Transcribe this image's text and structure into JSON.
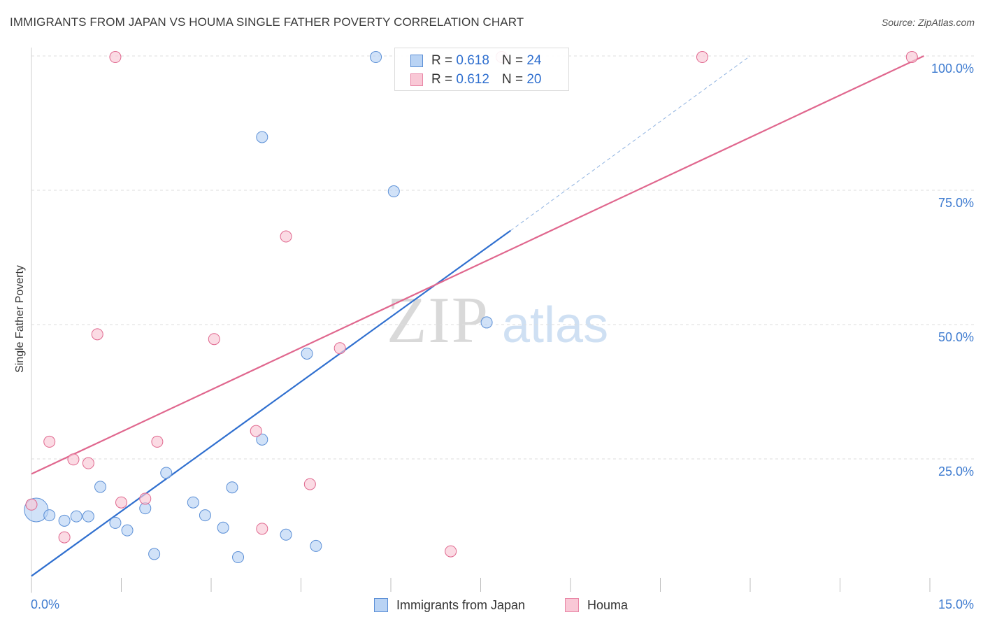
{
  "header": {
    "title": "IMMIGRANTS FROM JAPAN VS HOUMA SINGLE FATHER POVERTY CORRELATION CHART",
    "source": "Source: ZipAtlas.com"
  },
  "watermark": {
    "zip": "ZIP",
    "atlas": "atlas"
  },
  "legend_top": {
    "rows": [
      {
        "r_label": "R =",
        "r_value": "0.618",
        "n_label": "N =",
        "n_value": "24",
        "color": "#b9d3f4"
      },
      {
        "r_label": "R =",
        "r_value": "0.612",
        "n_label": "N =",
        "n_value": "20",
        "color": "#f9c8d6"
      }
    ]
  },
  "legend_bottom": {
    "items": [
      {
        "label": "Immigrants from Japan",
        "color": "#b9d3f4"
      },
      {
        "label": "Houma",
        "color": "#f9c8d6"
      }
    ]
  },
  "chart_data": {
    "type": "scatter",
    "title": "IMMIGRANTS FROM JAPAN VS HOUMA SINGLE FATHER POVERTY CORRELATION CHART",
    "xlabel": "",
    "ylabel": "Single Father Poverty",
    "xlim": [
      0,
      15
    ],
    "ylim": [
      0,
      100
    ],
    "x_tick_labels": [
      "0.0%",
      "15.0%"
    ],
    "y_tick_labels": [
      "25.0%",
      "50.0%",
      "75.0%",
      "100.0%"
    ],
    "y_ticks": [
      25,
      50,
      75,
      100
    ],
    "grid": true,
    "legend_position": "top-center",
    "series": [
      {
        "name": "Immigrants from Japan",
        "color": "#5b8fd6",
        "fill": "#b9d3f4",
        "r": 0.618,
        "n": 24,
        "points": [
          [
            0.08,
            15.5
          ],
          [
            0.3,
            14.5
          ],
          [
            0.55,
            13.5
          ],
          [
            0.75,
            14.3
          ],
          [
            0.95,
            14.3
          ],
          [
            1.15,
            19.8
          ],
          [
            1.4,
            13.1
          ],
          [
            1.6,
            11.7
          ],
          [
            1.9,
            15.8
          ],
          [
            2.05,
            7.3
          ],
          [
            2.25,
            22.4
          ],
          [
            2.7,
            16.9
          ],
          [
            2.9,
            14.5
          ],
          [
            3.2,
            12.2
          ],
          [
            3.35,
            19.7
          ],
          [
            3.45,
            6.7
          ],
          [
            3.85,
            28.6
          ],
          [
            3.85,
            84.9
          ],
          [
            4.25,
            10.9
          ],
          [
            4.6,
            44.6
          ],
          [
            4.75,
            8.8
          ],
          [
            5.75,
            99.8
          ],
          [
            6.05,
            74.8
          ],
          [
            7.6,
            50.4
          ]
        ],
        "trend": {
          "x0": 0,
          "y0": 3.2,
          "x1": 8.0,
          "y1": 67.5,
          "dashed_to": [
            12.0,
            100.0
          ]
        }
      },
      {
        "name": "Houma",
        "color": "#e0678e",
        "fill": "#f9c8d6",
        "r": 0.612,
        "n": 20,
        "points": [
          [
            0.0,
            16.5
          ],
          [
            0.3,
            28.2
          ],
          [
            0.55,
            10.4
          ],
          [
            0.7,
            24.9
          ],
          [
            0.95,
            24.2
          ],
          [
            1.1,
            48.2
          ],
          [
            1.4,
            99.8
          ],
          [
            1.5,
            16.9
          ],
          [
            1.9,
            17.6
          ],
          [
            2.1,
            28.2
          ],
          [
            3.05,
            47.3
          ],
          [
            3.75,
            30.2
          ],
          [
            3.85,
            12.0
          ],
          [
            4.25,
            66.4
          ],
          [
            4.65,
            20.3
          ],
          [
            5.15,
            45.6
          ],
          [
            7.0,
            7.8
          ],
          [
            7.85,
            99.8
          ],
          [
            11.2,
            99.8
          ],
          [
            14.7,
            99.8
          ]
        ],
        "trend": {
          "x0": 0,
          "y0": 22.2,
          "x1": 14.9,
          "y1": 100.0
        }
      }
    ]
  }
}
